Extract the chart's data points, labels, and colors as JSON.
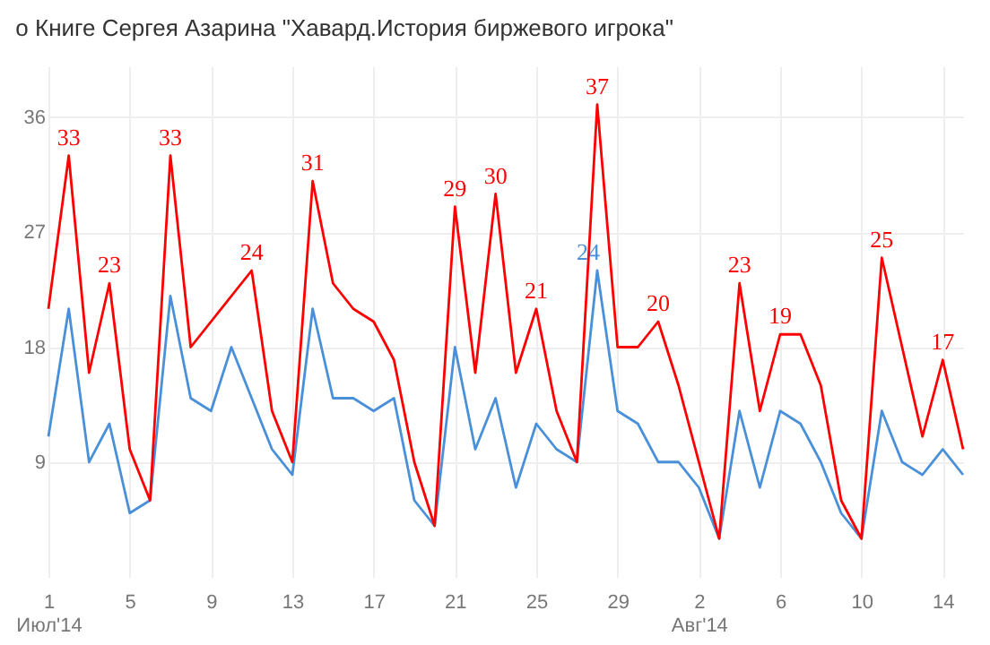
{
  "chart_data": {
    "type": "line",
    "title": "о Книге Сергея Азарина \"Хавард.История биржевого игрока\"",
    "x": [
      "2014-07-01",
      "2014-07-02",
      "2014-07-03",
      "2014-07-04",
      "2014-07-05",
      "2014-07-06",
      "2014-07-07",
      "2014-07-08",
      "2014-07-09",
      "2014-07-10",
      "2014-07-11",
      "2014-07-12",
      "2014-07-13",
      "2014-07-14",
      "2014-07-15",
      "2014-07-16",
      "2014-07-17",
      "2014-07-18",
      "2014-07-19",
      "2014-07-20",
      "2014-07-21",
      "2014-07-22",
      "2014-07-23",
      "2014-07-24",
      "2014-07-25",
      "2014-07-26",
      "2014-07-27",
      "2014-07-28",
      "2014-07-29",
      "2014-07-30",
      "2014-07-31",
      "2014-08-01",
      "2014-08-02",
      "2014-08-03",
      "2014-08-04",
      "2014-08-05",
      "2014-08-06",
      "2014-08-07",
      "2014-08-08",
      "2014-08-09",
      "2014-08-10",
      "2014-08-11",
      "2014-08-12",
      "2014-08-13",
      "2014-08-14",
      "2014-08-15"
    ],
    "series": [
      {
        "color": "#4a90d9",
        "values": [
          11,
          21,
          9,
          12,
          5,
          6,
          22,
          14,
          13,
          18,
          14,
          10,
          8,
          21,
          14,
          14,
          13,
          14,
          6,
          4,
          18,
          10,
          14,
          7,
          12,
          10,
          9,
          24,
          13,
          12,
          9,
          9,
          7,
          3,
          13,
          7,
          13,
          12,
          9,
          5,
          3,
          13,
          9,
          8,
          10,
          8
        ],
        "value_labels": [
          null,
          null,
          null,
          null,
          null,
          null,
          null,
          null,
          null,
          null,
          null,
          null,
          null,
          null,
          null,
          null,
          null,
          null,
          null,
          null,
          null,
          null,
          null,
          null,
          null,
          null,
          null,
          "24",
          null,
          null,
          null,
          null,
          null,
          null,
          null,
          null,
          null,
          null,
          null,
          null,
          null,
          null,
          null,
          null,
          null,
          null
        ]
      },
      {
        "color": "#ff0000",
        "values": [
          21,
          33,
          16,
          23,
          10,
          6,
          33,
          18,
          20,
          22,
          24,
          13,
          9,
          31,
          23,
          21,
          20,
          17,
          9,
          4,
          29,
          16,
          30,
          16,
          21,
          13,
          9,
          37,
          18,
          18,
          20,
          15,
          9,
          3,
          23,
          13,
          19,
          19,
          15,
          6,
          3,
          25,
          18,
          11,
          17,
          10
        ],
        "value_labels": [
          null,
          "33",
          null,
          "23",
          null,
          null,
          "33",
          null,
          null,
          null,
          "24",
          null,
          null,
          "31",
          null,
          null,
          null,
          null,
          null,
          null,
          "29",
          null,
          "30",
          null,
          "21",
          null,
          null,
          "37",
          null,
          null,
          "20",
          null,
          null,
          null,
          "23",
          null,
          "19",
          null,
          null,
          null,
          null,
          "25",
          null,
          null,
          "17",
          null
        ]
      }
    ],
    "xlim": [
      "2014-07-01",
      "2014-08-15"
    ],
    "xticks": [
      {
        "value": "2014-07-01",
        "label": "1\nИюл'14"
      },
      {
        "value": "2014-07-05",
        "label": "5"
      },
      {
        "value": "2014-07-09",
        "label": "9"
      },
      {
        "value": "2014-07-13",
        "label": "13"
      },
      {
        "value": "2014-07-17",
        "label": "17"
      },
      {
        "value": "2014-07-21",
        "label": "21"
      },
      {
        "value": "2014-07-25",
        "label": "25"
      },
      {
        "value": "2014-07-29",
        "label": "29"
      },
      {
        "value": "2014-08-02",
        "label": "2\nАвг'14"
      },
      {
        "value": "2014-08-06",
        "label": "6"
      },
      {
        "value": "2014-08-10",
        "label": "10"
      },
      {
        "value": "2014-08-14",
        "label": "14"
      }
    ],
    "ylim": [
      0,
      40
    ],
    "yticks": [
      9,
      18,
      27,
      36
    ],
    "grid": true,
    "marker": "none",
    "line_style": "solid"
  }
}
